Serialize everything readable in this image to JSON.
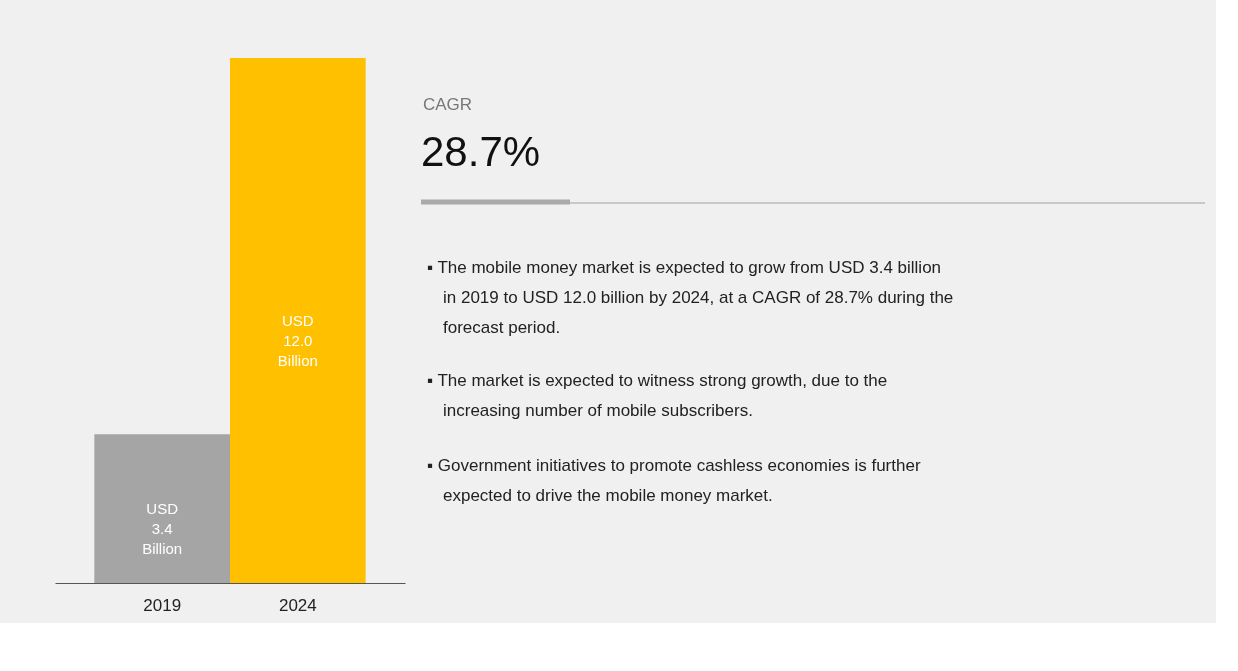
{
  "chart_data": {
    "type": "bar",
    "categories": [
      "2019",
      "2024"
    ],
    "values": [
      3.4,
      12.0
    ],
    "colors": [
      "#a5a5a5",
      "#ffc000"
    ],
    "value_labels": [
      "USD 3.4 Billion",
      "USD 12.0 Billion"
    ],
    "annotations": [
      "CAGR",
      "28.7%",
      "▪ The mobile money market is expected to grow from USD 3.4 billion in 2019 to USD 12.0 billion by 2024, at a CAGR of 28.7% during the forecast period.",
      "▪ The market is expected to witness strong growth, due to the increasing number of mobile subscribers.",
      "▪ Government initiatives to promote cashless economies is further expected to drive the mobile money market."
    ],
    "grid": false
  }
}
